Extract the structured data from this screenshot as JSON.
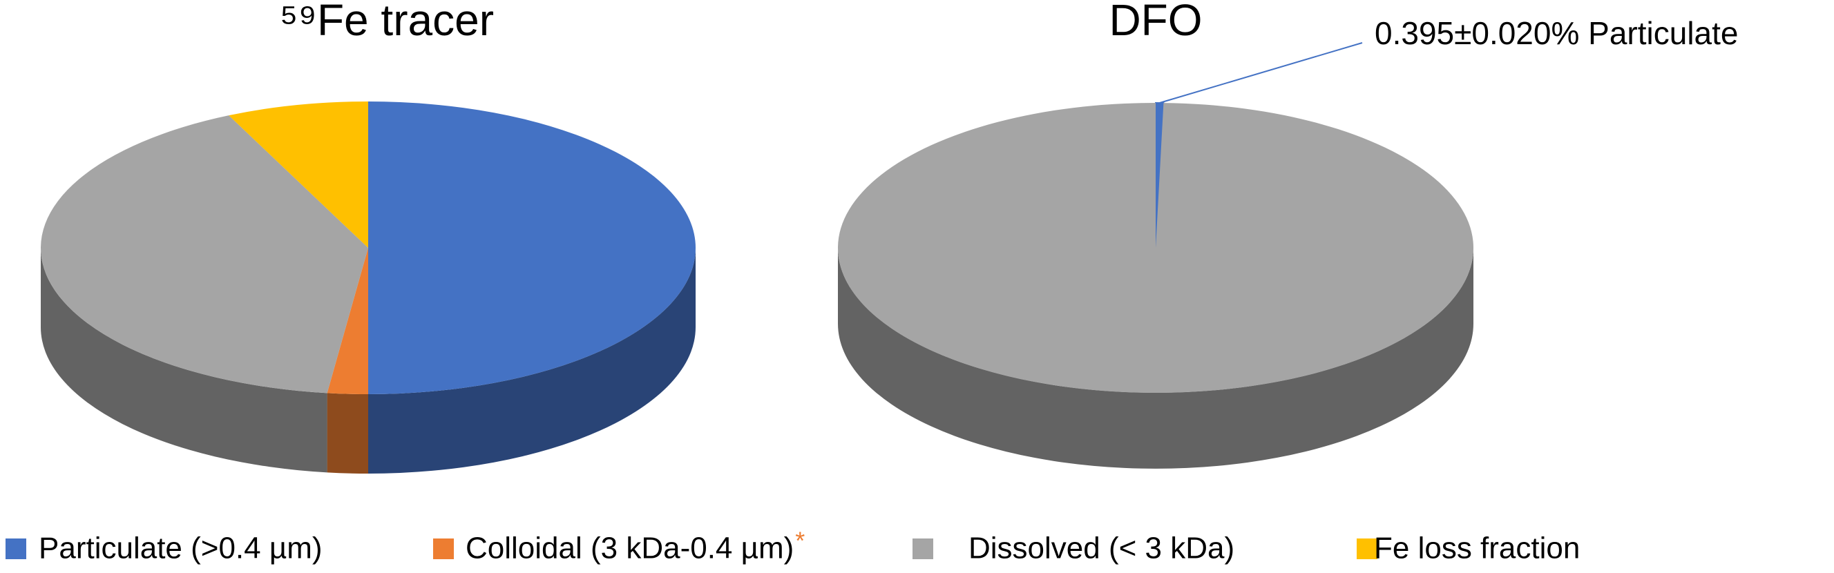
{
  "chart_data": [
    {
      "type": "pie",
      "title": "⁵⁹Fe tracer",
      "categories": [
        "Particulate (>0.4 µm)",
        "Colloidal (3 kDa-0.4 µm)",
        "Dissolved (< 3 kDa)",
        "Fe loss fraction"
      ],
      "category_note": "*",
      "colors": [
        "#4472c4",
        "#ed7d31",
        "#a5a5a5",
        "#ffc000"
      ],
      "values": [
        50,
        2,
        41,
        7
      ]
    },
    {
      "type": "pie",
      "title": "DFO",
      "values": [
        0.395,
        null,
        99.605,
        null
      ],
      "annotation": "0.395±0.020% Particulate"
    }
  ]
}
